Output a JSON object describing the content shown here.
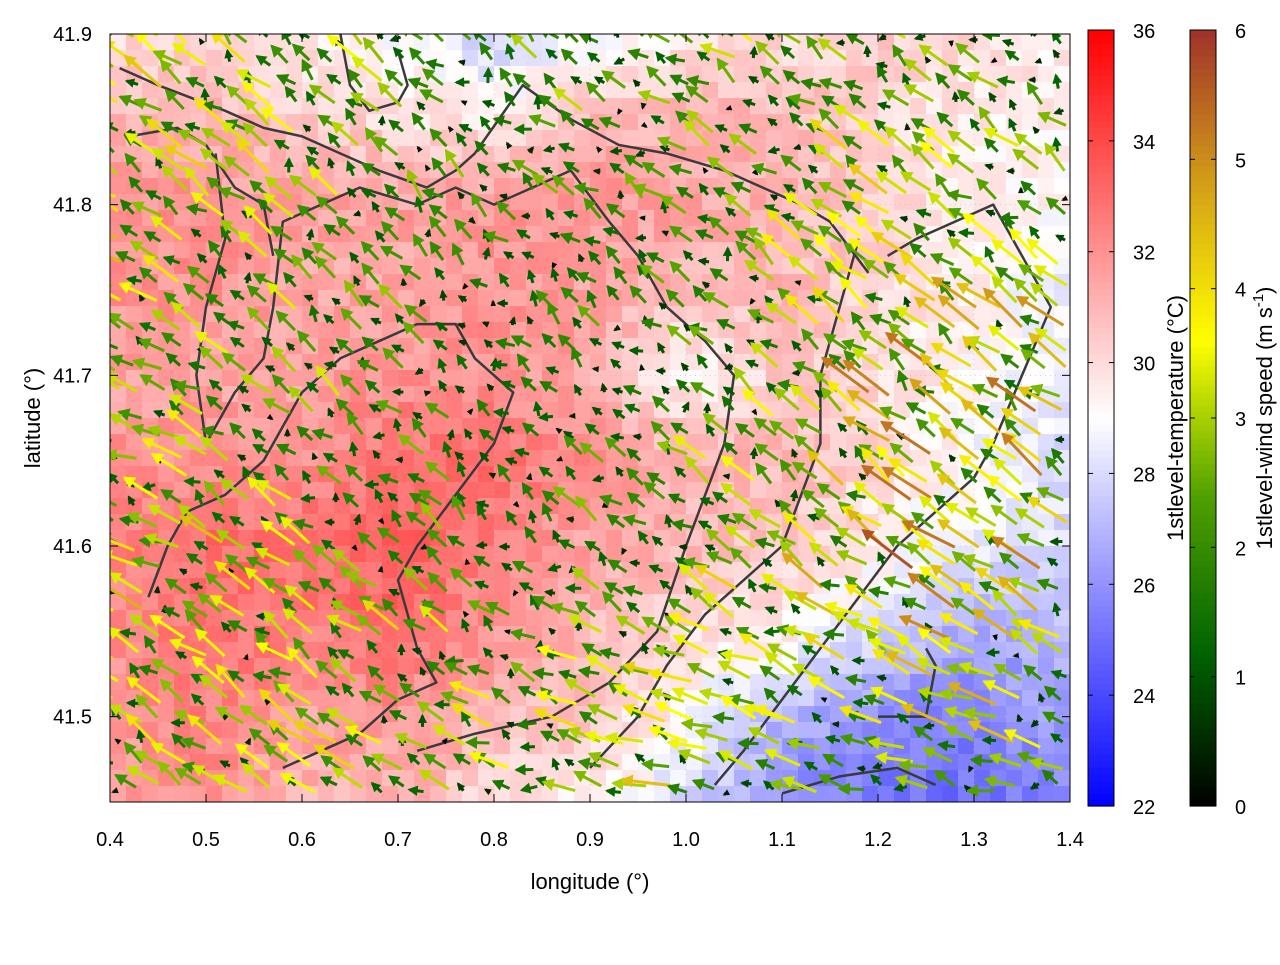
{
  "chart_data": {
    "type": "heatmap",
    "overlay": "vector",
    "xlabel": "longitude (°)",
    "ylabel": "latitude (°)",
    "xlim": [
      0.4,
      1.4
    ],
    "ylim": [
      41.45,
      41.9
    ],
    "xticks": [
      "0.4",
      "0.5",
      "0.6",
      "0.7",
      "0.8",
      "0.9",
      "1.0",
      "1.1",
      "1.2",
      "1.3",
      "1.4"
    ],
    "yticks": [
      "41.5",
      "41.6",
      "41.7",
      "41.8",
      "41.9"
    ],
    "grid": true,
    "temperature": {
      "label": "1stlevel-temperature (°C)",
      "range": [
        22,
        36
      ],
      "ticks": [
        "22",
        "24",
        "26",
        "28",
        "30",
        "32",
        "34",
        "36"
      ],
      "colors": [
        "#0000ff",
        "#ffffff",
        "#ff0000"
      ],
      "lon": [
        0.4,
        0.5,
        0.6,
        0.7,
        0.8,
        0.9,
        1.0,
        1.1,
        1.2,
        1.3,
        1.4
      ],
      "lat": [
        41.9,
        41.85,
        41.8,
        41.75,
        41.7,
        41.65,
        41.6,
        41.55,
        41.5,
        41.45
      ],
      "values": [
        [
          30,
          30,
          29.5,
          29,
          27.5,
          28.5,
          29.5,
          30,
          30.5,
          30,
          29.5
        ],
        [
          31,
          31,
          30.5,
          30,
          29.5,
          31,
          31,
          31,
          30,
          29.5,
          29.5
        ],
        [
          32,
          32,
          31.5,
          31.5,
          32,
          32,
          31.5,
          31,
          30.5,
          29.5,
          29
        ],
        [
          32,
          32,
          31.5,
          31.5,
          32,
          31.5,
          31,
          31,
          30,
          29.5,
          28.5
        ],
        [
          31.5,
          31.5,
          31.5,
          32,
          32,
          31.5,
          29,
          30.5,
          30,
          29,
          28.5
        ],
        [
          32,
          32,
          32,
          33,
          33,
          32,
          31,
          31,
          30,
          29,
          28
        ],
        [
          32.5,
          33,
          33,
          33.5,
          32.5,
          31.5,
          31,
          30.5,
          29.5,
          28.5,
          28
        ],
        [
          32,
          33,
          32.5,
          33,
          32,
          31,
          30,
          29.5,
          28,
          26.5,
          27
        ],
        [
          32,
          32.5,
          31.5,
          32,
          31,
          30.5,
          29,
          27,
          26,
          25.5,
          26.5
        ],
        [
          31.5,
          32,
          31,
          31,
          30,
          29.5,
          28,
          26,
          25,
          25,
          25.5
        ]
      ]
    },
    "wind": {
      "label": "1stlevel-wind speed (m s",
      "label_sup": "-1",
      "label_end": ")",
      "range": [
        0,
        6
      ],
      "ticks": [
        "0",
        "1",
        "2",
        "3",
        "4",
        "5",
        "6"
      ],
      "colors": [
        "#000000",
        "#006400",
        "#50a000",
        "#ffff00",
        "#d4a017",
        "#a0322a"
      ],
      "lon": [
        0.4,
        0.6,
        0.8,
        1.0,
        1.2,
        1.4
      ],
      "lat": [
        41.9,
        41.8,
        41.7,
        41.6,
        41.5,
        41.45
      ],
      "u": [
        [
          -2.0,
          -1.5,
          -1.0,
          -1.5,
          -1.5,
          -1.0
        ],
        [
          -2.5,
          -1.5,
          -1.0,
          -1.5,
          -2.0,
          -2.0
        ],
        [
          -2.5,
          -1.5,
          -0.5,
          -1.0,
          -2.5,
          -2.5
        ],
        [
          -2.5,
          -2.0,
          -1.0,
          -1.5,
          -2.5,
          -3.0
        ],
        [
          -2.0,
          -2.0,
          -2.0,
          -2.5,
          -2.5,
          -2.5
        ],
        [
          -2.0,
          -2.0,
          -2.0,
          -2.5,
          -2.0,
          -2.0
        ]
      ],
      "v": [
        [
          1.5,
          1.5,
          1.0,
          1.0,
          1.0,
          0.5
        ],
        [
          1.5,
          1.5,
          1.0,
          1.0,
          1.5,
          1.5
        ],
        [
          1.0,
          1.5,
          0.5,
          1.0,
          2.0,
          2.0
        ],
        [
          1.0,
          1.5,
          1.0,
          1.0,
          2.0,
          2.0
        ],
        [
          1.5,
          1.5,
          1.0,
          1.0,
          1.0,
          1.0
        ],
        [
          1.5,
          1.5,
          0.5,
          0.5,
          0.5,
          0.5
        ]
      ]
    },
    "borders": [
      [
        [
          0.41,
          41.88
        ],
        [
          0.45,
          41.87
        ],
        [
          0.52,
          41.855
        ],
        [
          0.56,
          41.845
        ],
        [
          0.6,
          41.84
        ],
        [
          0.64,
          41.83
        ],
        [
          0.68,
          41.82
        ],
        [
          0.73,
          41.81
        ],
        [
          0.76,
          41.82
        ],
        [
          0.78,
          41.83
        ],
        [
          0.83,
          41.87
        ],
        [
          0.88,
          41.85
        ],
        [
          0.93,
          41.835
        ],
        [
          0.98,
          41.83
        ],
        [
          1.04,
          41.82
        ],
        [
          1.08,
          41.81
        ],
        [
          1.12,
          41.8
        ],
        [
          1.15,
          41.79
        ],
        [
          1.19,
          41.76
        ]
      ],
      [
        [
          0.42,
          41.84
        ],
        [
          0.47,
          41.845
        ],
        [
          0.5,
          41.835
        ],
        [
          0.53,
          41.81
        ],
        [
          0.56,
          41.8
        ],
        [
          0.57,
          41.77
        ]
      ],
      [
        [
          0.51,
          41.83
        ],
        [
          0.52,
          41.78
        ],
        [
          0.5,
          41.74
        ],
        [
          0.49,
          41.7
        ],
        [
          0.5,
          41.66
        ],
        [
          0.53,
          41.69
        ],
        [
          0.56,
          41.71
        ],
        [
          0.57,
          41.74
        ],
        [
          0.58,
          41.79
        ],
        [
          0.62,
          41.8
        ],
        [
          0.66,
          41.81
        ],
        [
          0.72,
          41.8
        ],
        [
          0.76,
          41.81
        ],
        [
          0.8,
          41.8
        ],
        [
          0.84,
          41.81
        ],
        [
          0.88,
          41.82
        ],
        [
          0.92,
          41.79
        ],
        [
          0.95,
          41.77
        ],
        [
          0.98,
          41.74
        ],
        [
          1.02,
          41.72
        ],
        [
          1.05,
          41.7
        ],
        [
          1.04,
          41.66
        ],
        [
          1.0,
          41.6
        ],
        [
          0.97,
          41.55
        ],
        [
          0.92,
          41.52
        ],
        [
          0.86,
          41.5
        ],
        [
          0.78,
          41.49
        ],
        [
          0.72,
          41.48
        ]
      ],
      [
        [
          0.64,
          41.9
        ],
        [
          0.65,
          41.87
        ],
        [
          0.67,
          41.855
        ],
        [
          0.7,
          41.86
        ],
        [
          0.71,
          41.87
        ],
        [
          0.7,
          41.89
        ]
      ],
      [
        [
          0.44,
          41.57
        ],
        [
          0.46,
          41.6
        ],
        [
          0.48,
          41.62
        ],
        [
          0.52,
          41.63
        ],
        [
          0.56,
          41.65
        ],
        [
          0.6,
          41.69
        ],
        [
          0.64,
          41.71
        ],
        [
          0.68,
          41.72
        ],
        [
          0.72,
          41.73
        ],
        [
          0.76,
          41.73
        ],
        [
          0.78,
          41.71
        ],
        [
          0.82,
          41.69
        ],
        [
          0.8,
          41.66
        ],
        [
          0.76,
          41.63
        ],
        [
          0.72,
          41.6
        ],
        [
          0.7,
          41.58
        ],
        [
          0.72,
          41.54
        ],
        [
          0.74,
          41.52
        ],
        [
          0.7,
          41.51
        ],
        [
          0.66,
          41.49
        ],
        [
          0.62,
          41.48
        ],
        [
          0.58,
          41.47
        ]
      ],
      [
        [
          1.18,
          41.78
        ],
        [
          1.16,
          41.74
        ],
        [
          1.14,
          41.7
        ],
        [
          1.14,
          41.66
        ],
        [
          1.12,
          41.63
        ],
        [
          1.1,
          41.6
        ],
        [
          1.06,
          41.58
        ],
        [
          1.02,
          41.56
        ],
        [
          0.98,
          41.53
        ],
        [
          0.95,
          41.5
        ],
        [
          0.9,
          41.47
        ]
      ],
      [
        [
          1.21,
          41.77
        ],
        [
          1.24,
          41.78
        ],
        [
          1.28,
          41.79
        ],
        [
          1.32,
          41.8
        ],
        [
          1.34,
          41.78
        ],
        [
          1.36,
          41.76
        ],
        [
          1.38,
          41.74
        ],
        [
          1.35,
          41.7
        ],
        [
          1.32,
          41.66
        ],
        [
          1.3,
          41.64
        ],
        [
          1.26,
          41.62
        ],
        [
          1.22,
          41.6
        ],
        [
          1.18,
          41.57
        ],
        [
          1.14,
          41.54
        ],
        [
          1.1,
          41.51
        ],
        [
          1.06,
          41.48
        ],
        [
          1.03,
          41.46
        ]
      ],
      [
        [
          1.2,
          41.5
        ],
        [
          1.25,
          41.5
        ],
        [
          1.26,
          41.53
        ],
        [
          1.25,
          41.54
        ]
      ],
      [
        [
          1.1,
          41.455
        ],
        [
          1.16,
          41.465
        ],
        [
          1.22,
          41.47
        ],
        [
          1.26,
          41.46
        ]
      ]
    ]
  }
}
